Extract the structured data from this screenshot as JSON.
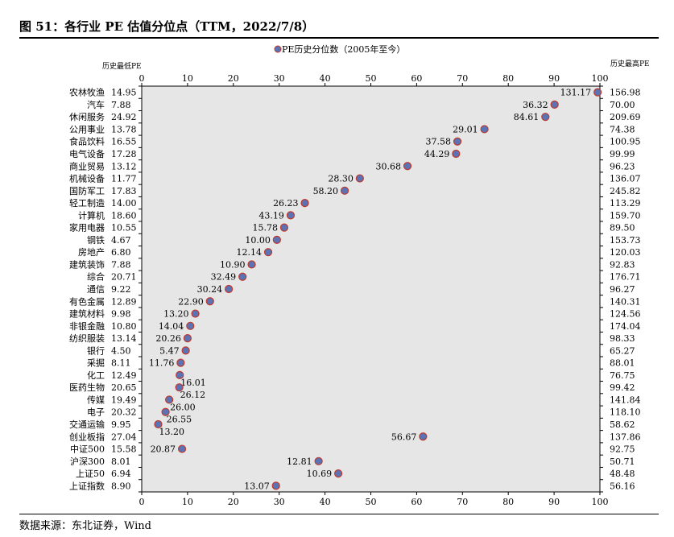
{
  "title": "图 51：各行业 PE 估值分位点（TTM，2022/7/8）",
  "source": "数据来源：东北证券，Wind",
  "chart_data": {
    "type": "scatter",
    "legend": {
      "label": "PE历史分位数（2005年至今）",
      "position": "top-center"
    },
    "left_header": "历史最低PE",
    "right_header": "历史最高PE",
    "xlim": [
      0,
      100
    ],
    "xticks": [
      0,
      10,
      20,
      30,
      40,
      50,
      60,
      70,
      80,
      90,
      100
    ],
    "grid": false,
    "colors": {
      "plot_bg": "#e6e6e6",
      "marker_fill": "#5b73b5",
      "marker_edge": "#c0392b"
    },
    "rows": [
      {
        "name": "农林牧渔",
        "min_pe": "14.95",
        "max_pe": "156.98",
        "percentile": 99.5,
        "current_pe": "131.17"
      },
      {
        "name": "汽车",
        "min_pe": "7.88",
        "max_pe": "70.00",
        "percentile": 90.1,
        "current_pe": "36.32"
      },
      {
        "name": "休闲服务",
        "min_pe": "24.92",
        "max_pe": "209.69",
        "percentile": 88.1,
        "current_pe": "84.61"
      },
      {
        "name": "公用事业",
        "min_pe": "13.78",
        "max_pe": "74.38",
        "percentile": 74.8,
        "current_pe": "29.01"
      },
      {
        "name": "食品饮料",
        "min_pe": "16.55",
        "max_pe": "100.95",
        "percentile": 68.9,
        "current_pe": "37.58"
      },
      {
        "name": "电气设备",
        "min_pe": "17.28",
        "max_pe": "99.99",
        "percentile": 68.6,
        "current_pe": "44.29"
      },
      {
        "name": "商业贸易",
        "min_pe": "13.12",
        "max_pe": "96.23",
        "percentile": 58.0,
        "current_pe": "30.68"
      },
      {
        "name": "机械设备",
        "min_pe": "11.77",
        "max_pe": "136.07",
        "percentile": 47.6,
        "current_pe": "28.30"
      },
      {
        "name": "国防军工",
        "min_pe": "17.83",
        "max_pe": "245.82",
        "percentile": 44.3,
        "current_pe": "58.20"
      },
      {
        "name": "轻工制造",
        "min_pe": "14.00",
        "max_pe": "113.29",
        "percentile": 35.6,
        "current_pe": "26.23"
      },
      {
        "name": "计算机",
        "min_pe": "18.60",
        "max_pe": "159.70",
        "percentile": 32.5,
        "current_pe": "43.19"
      },
      {
        "name": "家用电器",
        "min_pe": "10.55",
        "max_pe": "89.50",
        "percentile": 31.1,
        "current_pe": "15.78"
      },
      {
        "name": "钢铁",
        "min_pe": "4.67",
        "max_pe": "153.73",
        "percentile": 29.5,
        "current_pe": "10.00"
      },
      {
        "name": "房地产",
        "min_pe": "6.80",
        "max_pe": "120.03",
        "percentile": 27.6,
        "current_pe": "12.14"
      },
      {
        "name": "建筑装饰",
        "min_pe": "7.88",
        "max_pe": "92.83",
        "percentile": 24.0,
        "current_pe": "10.90"
      },
      {
        "name": "综合",
        "min_pe": "20.71",
        "max_pe": "176.71",
        "percentile": 22.0,
        "current_pe": "32.49"
      },
      {
        "name": "通信",
        "min_pe": "9.22",
        "max_pe": "96.27",
        "percentile": 19.0,
        "current_pe": "30.24"
      },
      {
        "name": "有色金属",
        "min_pe": "12.89",
        "max_pe": "140.31",
        "percentile": 14.9,
        "current_pe": "22.90"
      },
      {
        "name": "建筑材料",
        "min_pe": "9.98",
        "max_pe": "124.56",
        "percentile": 11.7,
        "current_pe": "13.20"
      },
      {
        "name": "非银金融",
        "min_pe": "10.80",
        "max_pe": "174.04",
        "percentile": 10.6,
        "current_pe": "14.04"
      },
      {
        "name": "纺织服装",
        "min_pe": "13.14",
        "max_pe": "98.33",
        "percentile": 10.0,
        "current_pe": "20.26"
      },
      {
        "name": "银行",
        "min_pe": "4.50",
        "max_pe": "65.27",
        "percentile": 9.6,
        "current_pe": "5.47"
      },
      {
        "name": "采掘",
        "min_pe": "8.11",
        "max_pe": "88.01",
        "percentile": 8.5,
        "current_pe": "11.76"
      },
      {
        "name": "化工",
        "min_pe": "12.49",
        "max_pe": "76.75",
        "percentile": 8.3,
        "current_pe": "16.01"
      },
      {
        "name": "医药生物",
        "min_pe": "20.65",
        "max_pe": "99.42",
        "percentile": 8.2,
        "current_pe": "26.12"
      },
      {
        "name": "传媒",
        "min_pe": "19.49",
        "max_pe": "141.84",
        "percentile": 6.0,
        "current_pe": "26.00"
      },
      {
        "name": "电子",
        "min_pe": "20.32",
        "max_pe": "118.10",
        "percentile": 5.2,
        "current_pe": "26.55"
      },
      {
        "name": "交通运输",
        "min_pe": "9.95",
        "max_pe": "58.62",
        "percentile": 3.6,
        "current_pe": "13.20"
      },
      {
        "name": "创业板指",
        "min_pe": "27.04",
        "max_pe": "137.86",
        "percentile": 61.4,
        "current_pe": "56.67"
      },
      {
        "name": "中证500",
        "min_pe": "15.58",
        "max_pe": "92.75",
        "percentile": 8.8,
        "current_pe": "20.87"
      },
      {
        "name": "沪深300",
        "min_pe": "8.01",
        "max_pe": "50.71",
        "percentile": 38.6,
        "current_pe": "12.81"
      },
      {
        "name": "上证50",
        "min_pe": "6.94",
        "max_pe": "48.48",
        "percentile": 42.9,
        "current_pe": "10.69"
      },
      {
        "name": "上证指数",
        "min_pe": "8.90",
        "max_pe": "56.16",
        "percentile": 29.3,
        "current_pe": "13.07"
      }
    ]
  }
}
